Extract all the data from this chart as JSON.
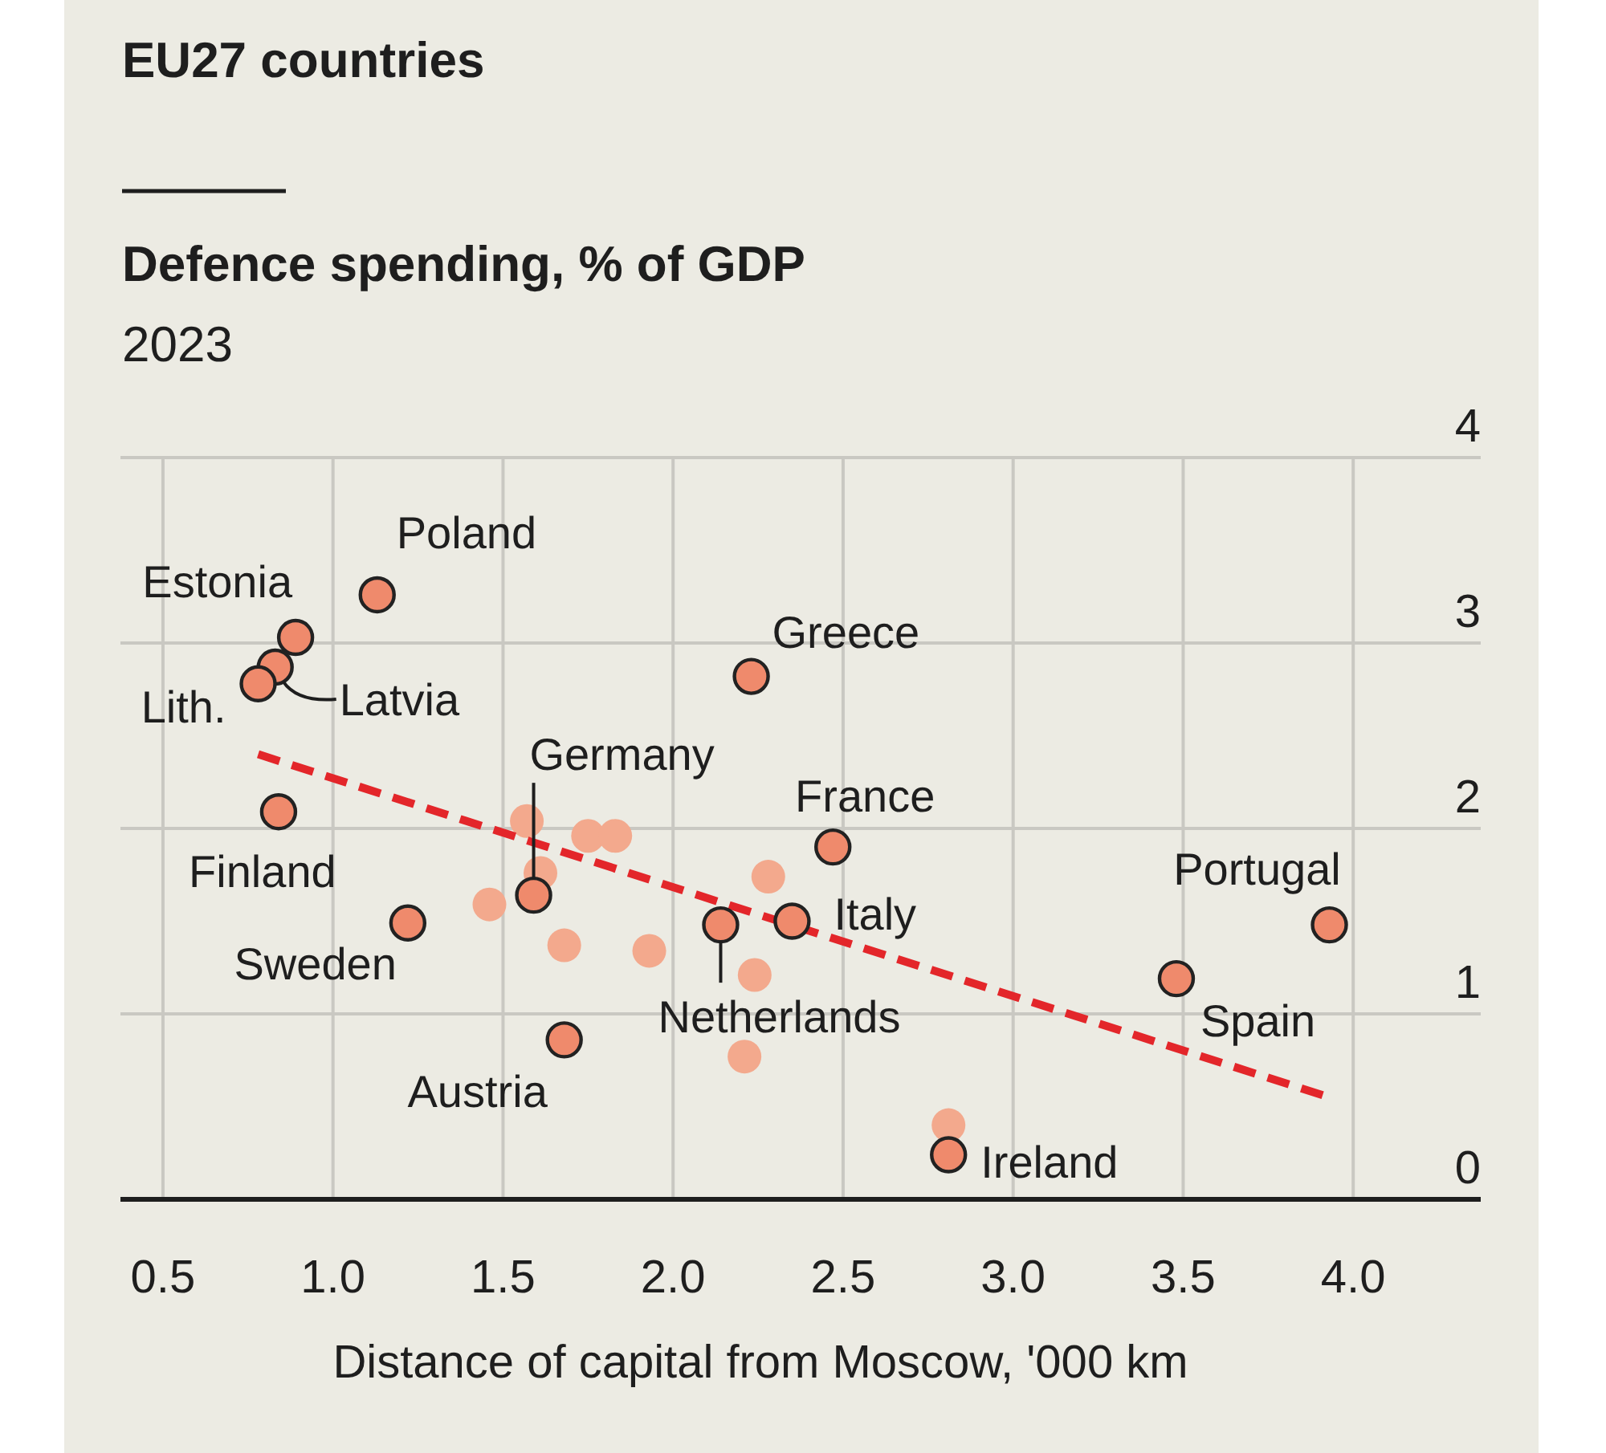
{
  "chart_data": {
    "type": "scatter",
    "title": "EU27 countries",
    "ylabel": "Defence spending, % of GDP",
    "subtitle": "2023",
    "xlabel": "Distance of capital from Moscow, '000 km",
    "xlim": [
      0.375,
      4.375
    ],
    "xticks": [
      {
        "value": 0.5,
        "label": "0.5"
      },
      {
        "value": 1,
        "label": "1.0"
      },
      {
        "value": 1.5,
        "label": "1.5"
      },
      {
        "value": 2,
        "label": "2.0"
      },
      {
        "value": 2.5,
        "label": "2.5"
      },
      {
        "value": 3,
        "label": "3.0"
      },
      {
        "value": 3.5,
        "label": "3.5"
      },
      {
        "value": 4,
        "label": "4.0"
      }
    ],
    "ylim": [
      0,
      4
    ],
    "yticks": [
      0,
      1,
      2,
      3,
      4
    ],
    "grid": true,
    "marker": "circle",
    "series": [
      {
        "color": "#ef8a6c",
        "x": [
          1.13,
          0.89,
          0.83,
          0.78,
          2.23,
          0.84,
          1.59,
          1.22,
          1.68,
          2.14,
          2.35,
          2.47,
          3.93,
          3.48,
          2.81
        ],
        "values": [
          3.26,
          3.03,
          2.87,
          2.78,
          2.82,
          2.09,
          1.64,
          1.49,
          0.86,
          1.48,
          1.5,
          1.9,
          1.48,
          1.19,
          0.24
        ]
      },
      {
        "color": "#f3a98d",
        "x": [
          1.57,
          1.75,
          1.83,
          1.61,
          1.46,
          1.68,
          1.93,
          2.28,
          2.24,
          2.21,
          2.81
        ],
        "values": [
          2.04,
          1.96,
          1.96,
          1.76,
          1.59,
          1.37,
          1.34,
          1.74,
          1.21,
          0.77,
          0.4
        ]
      },
      {
        "type": "line",
        "color": "#e3262a",
        "line_style": "dashed",
        "marker": "none",
        "x": [
          0.78,
          3.93
        ],
        "values": [
          2.4,
          0.55
        ]
      }
    ],
    "annotations": [
      {
        "text": "Poland",
        "x": 1.13,
        "y": 3.26
      },
      {
        "text": "Estonia",
        "x": 0.89,
        "y": 3.03
      },
      {
        "text": "Latvia",
        "x": 0.83,
        "y": 2.87
      },
      {
        "text": "Lith.",
        "x": 0.78,
        "y": 2.78
      },
      {
        "text": "Greece",
        "x": 2.23,
        "y": 2.82
      },
      {
        "text": "Finland",
        "x": 0.84,
        "y": 2.09
      },
      {
        "text": "Germany",
        "x": 1.59,
        "y": 1.64
      },
      {
        "text": "Sweden",
        "x": 1.22,
        "y": 1.49
      },
      {
        "text": "Austria",
        "x": 1.68,
        "y": 0.86
      },
      {
        "text": "Netherlands",
        "x": 2.14,
        "y": 1.48
      },
      {
        "text": "Italy",
        "x": 2.35,
        "y": 1.5
      },
      {
        "text": "France",
        "x": 2.47,
        "y": 1.9
      },
      {
        "text": "Portugal",
        "x": 3.93,
        "y": 1.48
      },
      {
        "text": "Spain",
        "x": 3.48,
        "y": 1.19
      },
      {
        "text": "Ireland",
        "x": 2.81,
        "y": 0.24
      }
    ]
  }
}
